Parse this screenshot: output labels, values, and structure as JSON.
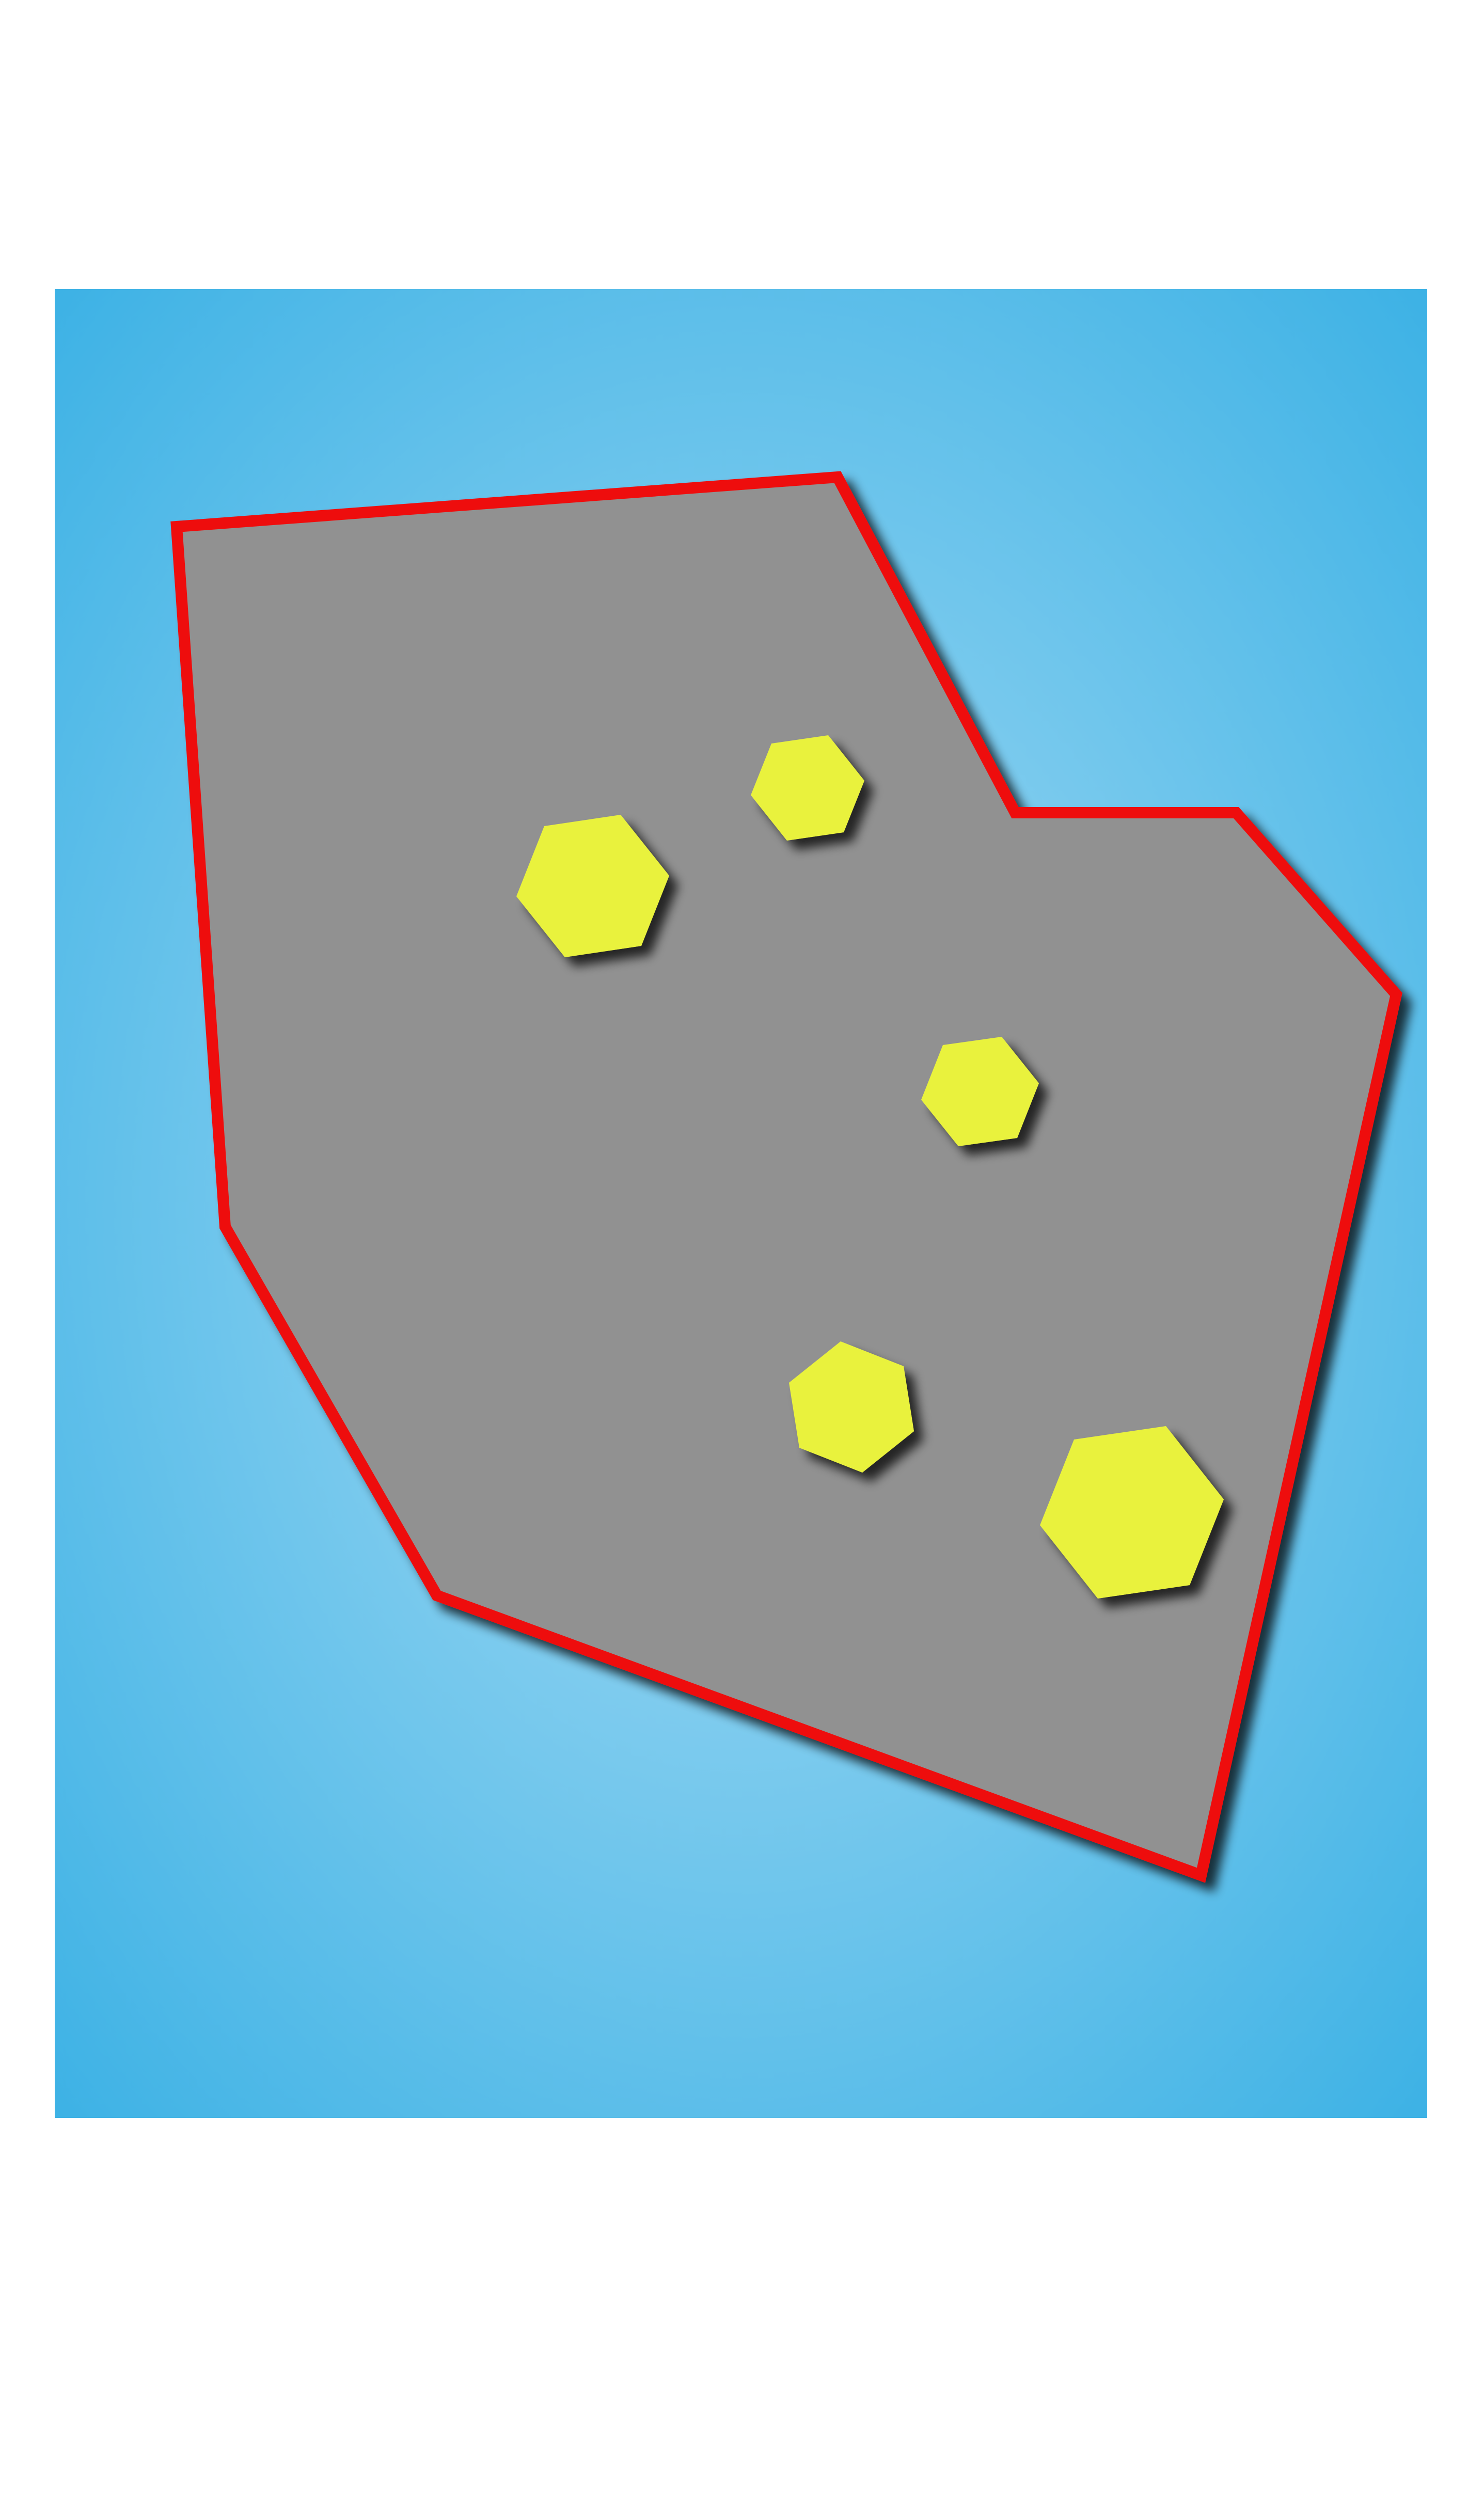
{
  "game": {
    "background": {
      "gradient_center": "#a8dcf4",
      "gradient_edge": "#36afe4"
    },
    "region": {
      "fill": "#919191",
      "border": "#ee1111",
      "shadow": "#000000"
    },
    "pieces": {
      "count": 5,
      "shape": "hexagon",
      "fill": "#e9f23c"
    }
  }
}
